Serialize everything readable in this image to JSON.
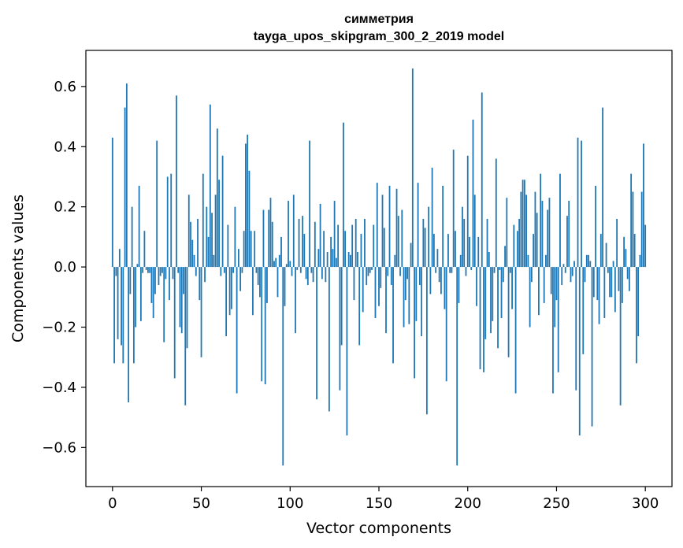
{
  "chart_data": {
    "type": "bar",
    "title": "симметрия",
    "subtitle": "tayga_upos_skipgram_300_2_2019 model",
    "xlabel": "Vector components",
    "ylabel": "Components values",
    "xlim": [
      -15,
      315
    ],
    "ylim": [
      -0.73,
      0.72
    ],
    "xticks": [
      0,
      50,
      100,
      150,
      200,
      250,
      300
    ],
    "xtick_labels": [
      "0",
      "50",
      "100",
      "150",
      "200",
      "250",
      "300"
    ],
    "yticks": [
      -0.6,
      -0.4,
      -0.2,
      0.0,
      0.2,
      0.4,
      0.6
    ],
    "ytick_labels": [
      "−0.6",
      "−0.4",
      "−0.2",
      "0.0",
      "0.2",
      "0.4",
      "0.6"
    ],
    "color": "#1f77b4",
    "values": [
      0.43,
      -0.32,
      -0.03,
      -0.24,
      0.06,
      -0.26,
      -0.32,
      0.53,
      0.61,
      -0.45,
      -0.09,
      0.2,
      -0.32,
      -0.2,
      0.01,
      0.27,
      -0.18,
      -0.02,
      0.12,
      -0.01,
      -0.02,
      -0.02,
      -0.12,
      -0.17,
      -0.09,
      0.42,
      -0.06,
      -0.03,
      -0.02,
      -0.25,
      -0.04,
      0.3,
      -0.11,
      0.31,
      -0.04,
      -0.37,
      0.57,
      -0.02,
      -0.2,
      -0.22,
      -0.09,
      -0.46,
      -0.27,
      0.24,
      0.15,
      0.09,
      0.04,
      -0.03,
      0.16,
      -0.11,
      -0.3,
      0.31,
      -0.05,
      0.2,
      0.1,
      0.54,
      0.18,
      0.04,
      0.24,
      0.46,
      0.29,
      -0.03,
      0.37,
      -0.02,
      -0.23,
      0.14,
      -0.16,
      -0.14,
      -0.02,
      0.2,
      -0.42,
      0.06,
      -0.08,
      -0.02,
      0.12,
      0.41,
      0.44,
      0.32,
      0.12,
      -0.16,
      0.12,
      -0.02,
      -0.06,
      -0.1,
      -0.38,
      0.19,
      -0.39,
      -0.12,
      0.19,
      0.23,
      0.15,
      0.02,
      0.03,
      -0.1,
      0.04,
      0.1,
      -0.66,
      -0.13,
      0.01,
      0.22,
      0.02,
      -0.03,
      0.24,
      -0.22,
      -0.01,
      0.16,
      -0.02,
      0.17,
      0.11,
      -0.04,
      -0.06,
      0.42,
      -0.02,
      -0.05,
      0.15,
      -0.44,
      0.06,
      0.21,
      -0.04,
      0.12,
      -0.05,
      0.05,
      -0.48,
      0.1,
      0.06,
      0.22,
      0.03,
      0.14,
      -0.41,
      -0.26,
      0.48,
      0.12,
      -0.56,
      0.05,
      0.04,
      0.14,
      -0.11,
      0.16,
      0.05,
      -0.26,
      0.11,
      -0.15,
      0.16,
      -0.06,
      -0.03,
      -0.02,
      -0.01,
      0.14,
      -0.17,
      0.28,
      -0.13,
      -0.07,
      0.24,
      0.13,
      -0.22,
      -0.03,
      0.27,
      -0.06,
      -0.32,
      0.04,
      0.26,
      0.17,
      -0.03,
      0.19,
      -0.2,
      -0.11,
      -0.04,
      -0.19,
      0.08,
      0.66,
      -0.37,
      -0.18,
      0.28,
      -0.06,
      -0.23,
      0.16,
      0.13,
      -0.49,
      0.2,
      -0.09,
      0.33,
      0.11,
      -0.02,
      0.06,
      -0.05,
      -0.09,
      0.27,
      -0.14,
      -0.38,
      0.11,
      -0.02,
      -0.02,
      0.39,
      0.12,
      -0.66,
      -0.12,
      0.04,
      0.2,
      0.16,
      -0.03,
      0.37,
      0.1,
      -0.01,
      0.49,
      0.24,
      -0.13,
      0.1,
      -0.34,
      0.58,
      -0.35,
      -0.24,
      0.16,
      0.05,
      -0.22,
      -0.18,
      -0.02,
      0.36,
      -0.27,
      -0.01,
      -0.17,
      -0.05,
      0.07,
      0.23,
      -0.3,
      -0.02,
      -0.14,
      0.14,
      -0.42,
      0.12,
      0.16,
      0.25,
      0.29,
      0.29,
      0.24,
      0.04,
      -0.2,
      -0.05,
      0.11,
      0.25,
      0.18,
      -0.16,
      0.31,
      0.22,
      -0.12,
      0.04,
      0.19,
      0.23,
      -0.09,
      -0.42,
      -0.2,
      -0.11,
      -0.35,
      0.31,
      -0.06,
      0.01,
      -0.02,
      0.17,
      0.22,
      -0.05,
      -0.03,
      0.02,
      -0.41,
      0.43,
      -0.56,
      0.42,
      -0.29,
      -0.05,
      0.04,
      0.04,
      0.02,
      -0.53,
      -0.1,
      0.27,
      -0.11,
      -0.19,
      0.11,
      0.53,
      -0.17,
      0.08,
      -0.02,
      -0.1,
      -0.1,
      0.02,
      -0.15,
      0.16,
      -0.08,
      -0.46,
      -0.12,
      0.1,
      0.06,
      -0.04,
      -0.08,
      0.31,
      0.25,
      0.11,
      -0.32,
      -0.23,
      0.04,
      0.25,
      0.41,
      0.14
    ]
  }
}
